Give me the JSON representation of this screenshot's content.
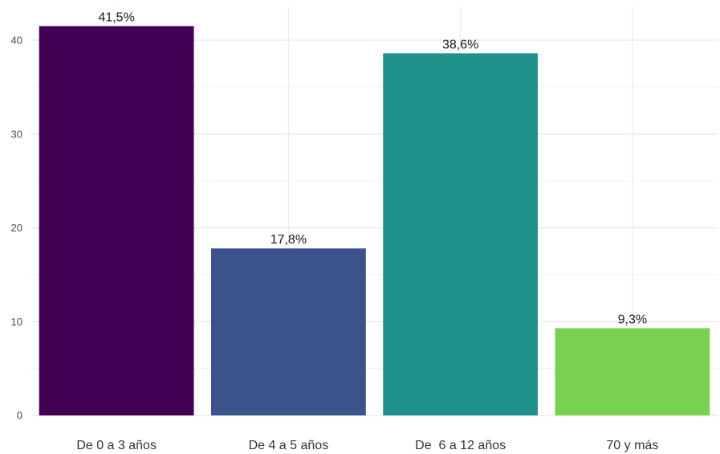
{
  "chart_data": {
    "type": "bar",
    "categories": [
      "De 0 a 3 años",
      "De 4 a 5 años",
      "De  6 a 12 años",
      "70 y más"
    ],
    "values": [
      41.5,
      17.8,
      38.6,
      9.3
    ],
    "data_labels": [
      "41,5%",
      "17,8%",
      "38,6%",
      "9,3%"
    ],
    "colors": [
      "#440154",
      "#3b528b",
      "#21918c",
      "#7ad151"
    ],
    "y_ticks": [
      0,
      10,
      20,
      30,
      40
    ],
    "y_tick_labels": [
      "0",
      "10",
      "20",
      "30",
      "40"
    ],
    "ylim": [
      0,
      43.6
    ],
    "grid": true,
    "legend": "none",
    "title": "",
    "xlabel": "",
    "ylabel": ""
  }
}
